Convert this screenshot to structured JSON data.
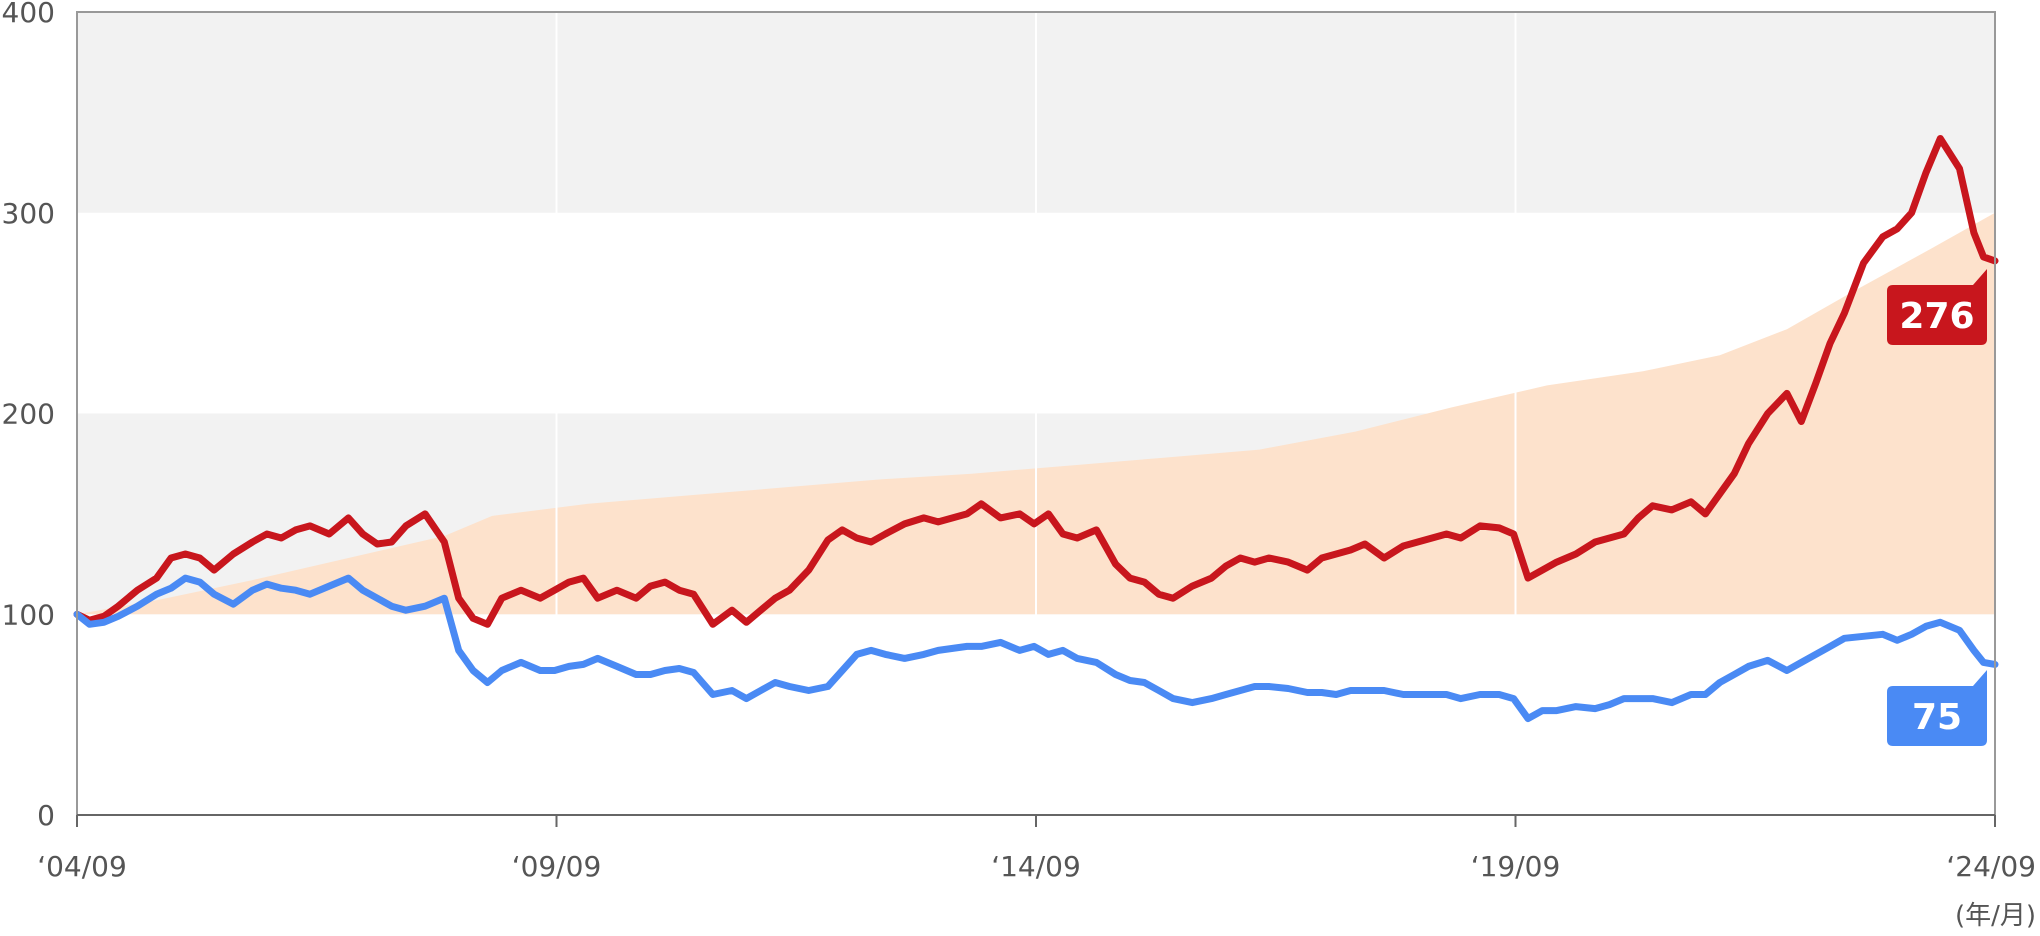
{
  "chart_data": {
    "type": "line",
    "ylim": [
      0,
      400
    ],
    "y_ticks": [
      "0",
      "100",
      "200",
      "300",
      "400"
    ],
    "x_ticks": [
      "‘04/09",
      "‘09/09",
      "‘14/09",
      "‘19/09",
      "‘24/09"
    ],
    "x_unit_label": "(年/月)",
    "grid": true,
    "colors": {
      "series_red": "#c8161d",
      "series_blue": "#4a8af4",
      "area_fill": "#fde2cc",
      "band_gray": "#f2f2f2",
      "axis": "#999999"
    },
    "area": {
      "x": [
        2004.67,
        2005.5,
        2006.5,
        2007.5,
        2008.5,
        2009.0,
        2010.0,
        2011.0,
        2012.0,
        2013.0,
        2014.0,
        2015.0,
        2016.0,
        2017.0,
        2018.0,
        2019.0,
        2020.0,
        2021.0,
        2021.8,
        2022.5,
        2023.2,
        2024.0,
        2024.67
      ],
      "values": [
        100,
        107,
        117,
        128,
        139,
        149,
        155,
        159,
        163,
        167,
        170,
        174,
        178,
        182,
        191,
        203,
        214,
        221,
        229,
        242,
        261,
        282,
        300
      ]
    },
    "series": [
      {
        "label": "276",
        "x": [
          2004.67,
          2004.8,
          2004.95,
          2005.1,
          2005.3,
          2005.5,
          2005.65,
          2005.8,
          2005.95,
          2006.1,
          2006.3,
          2006.5,
          2006.65,
          2006.8,
          2006.95,
          2007.1,
          2007.3,
          2007.5,
          2007.65,
          2007.8,
          2007.95,
          2008.1,
          2008.3,
          2008.5,
          2008.65,
          2008.8,
          2008.95,
          2009.1,
          2009.3,
          2009.5,
          2009.65,
          2009.8,
          2009.95,
          2010.1,
          2010.3,
          2010.5,
          2010.65,
          2010.8,
          2010.95,
          2011.1,
          2011.3,
          2011.5,
          2011.65,
          2011.8,
          2011.95,
          2012.1,
          2012.3,
          2012.5,
          2012.65,
          2012.8,
          2012.95,
          2013.1,
          2013.3,
          2013.5,
          2013.65,
          2013.8,
          2013.95,
          2014.1,
          2014.3,
          2014.5,
          2014.65,
          2014.8,
          2014.95,
          2015.1,
          2015.3,
          2015.5,
          2015.65,
          2015.8,
          2015.95,
          2016.1,
          2016.3,
          2016.5,
          2016.65,
          2016.8,
          2016.95,
          2017.1,
          2017.3,
          2017.5,
          2017.65,
          2017.8,
          2017.95,
          2018.1,
          2018.3,
          2018.5,
          2018.65,
          2018.8,
          2018.95,
          2019.1,
          2019.3,
          2019.5,
          2019.65,
          2019.8,
          2019.95,
          2020.1,
          2020.3,
          2020.5,
          2020.65,
          2020.8,
          2020.95,
          2021.1,
          2021.3,
          2021.5,
          2021.65,
          2021.8,
          2021.95,
          2022.1,
          2022.3,
          2022.5,
          2022.65,
          2022.8,
          2022.95,
          2023.1,
          2023.3,
          2023.5,
          2023.65,
          2023.8,
          2023.95,
          2024.1,
          2024.3,
          2024.45,
          2024.55,
          2024.67
        ],
        "values": [
          100,
          97,
          99,
          104,
          112,
          118,
          128,
          130,
          128,
          122,
          130,
          136,
          140,
          138,
          142,
          144,
          140,
          148,
          140,
          135,
          136,
          144,
          150,
          136,
          108,
          98,
          95,
          108,
          112,
          108,
          112,
          116,
          118,
          108,
          112,
          108,
          114,
          116,
          112,
          110,
          95,
          102,
          96,
          102,
          108,
          112,
          122,
          137,
          142,
          138,
          136,
          140,
          145,
          148,
          146,
          148,
          150,
          155,
          148,
          150,
          145,
          150,
          140,
          138,
          142,
          125,
          118,
          116,
          110,
          108,
          114,
          118,
          124,
          128,
          126,
          128,
          126,
          122,
          128,
          130,
          132,
          135,
          128,
          134,
          136,
          138,
          140,
          138,
          144,
          143,
          140,
          118,
          122,
          126,
          130,
          136,
          138,
          140,
          148,
          154,
          152,
          156,
          150,
          160,
          170,
          185,
          200,
          210,
          196,
          215,
          235,
          250,
          275,
          288,
          292,
          300,
          320,
          337,
          322,
          290,
          278,
          276
        ]
      },
      {
        "label": "75",
        "x": [
          2004.67,
          2004.8,
          2004.95,
          2005.1,
          2005.3,
          2005.5,
          2005.65,
          2005.8,
          2005.95,
          2006.1,
          2006.3,
          2006.5,
          2006.65,
          2006.8,
          2006.95,
          2007.1,
          2007.3,
          2007.5,
          2007.65,
          2007.8,
          2007.95,
          2008.1,
          2008.3,
          2008.5,
          2008.65,
          2008.8,
          2008.95,
          2009.1,
          2009.3,
          2009.5,
          2009.65,
          2009.8,
          2009.95,
          2010.1,
          2010.3,
          2010.5,
          2010.65,
          2010.8,
          2010.95,
          2011.1,
          2011.3,
          2011.5,
          2011.65,
          2011.8,
          2011.95,
          2012.1,
          2012.3,
          2012.5,
          2012.65,
          2012.8,
          2012.95,
          2013.1,
          2013.3,
          2013.5,
          2013.65,
          2013.8,
          2013.95,
          2014.1,
          2014.3,
          2014.5,
          2014.65,
          2014.8,
          2014.95,
          2015.1,
          2015.3,
          2015.5,
          2015.65,
          2015.8,
          2015.95,
          2016.1,
          2016.3,
          2016.5,
          2016.65,
          2016.8,
          2016.95,
          2017.1,
          2017.3,
          2017.5,
          2017.65,
          2017.8,
          2017.95,
          2018.1,
          2018.3,
          2018.5,
          2018.65,
          2018.8,
          2018.95,
          2019.1,
          2019.3,
          2019.5,
          2019.65,
          2019.8,
          2019.95,
          2020.1,
          2020.3,
          2020.5,
          2020.65,
          2020.8,
          2020.95,
          2021.1,
          2021.3,
          2021.5,
          2021.65,
          2021.8,
          2021.95,
          2022.1,
          2022.3,
          2022.5,
          2022.65,
          2022.8,
          2022.95,
          2023.1,
          2023.3,
          2023.5,
          2023.65,
          2023.8,
          2023.95,
          2024.1,
          2024.3,
          2024.45,
          2024.55,
          2024.67
        ],
        "values": [
          100,
          95,
          96,
          99,
          104,
          110,
          113,
          118,
          116,
          110,
          105,
          112,
          115,
          113,
          112,
          110,
          114,
          118,
          112,
          108,
          104,
          102,
          104,
          108,
          82,
          72,
          66,
          72,
          76,
          72,
          72,
          74,
          75,
          78,
          74,
          70,
          70,
          72,
          73,
          71,
          60,
          62,
          58,
          62,
          66,
          64,
          62,
          64,
          72,
          80,
          82,
          80,
          78,
          80,
          82,
          83,
          84,
          84,
          86,
          82,
          84,
          80,
          82,
          78,
          76,
          70,
          67,
          66,
          62,
          58,
          56,
          58,
          60,
          62,
          64,
          64,
          63,
          61,
          61,
          60,
          62,
          62,
          62,
          60,
          60,
          60,
          60,
          58,
          60,
          60,
          58,
          48,
          52,
          52,
          54,
          53,
          55,
          58,
          58,
          58,
          56,
          60,
          60,
          66,
          70,
          74,
          77,
          72,
          76,
          80,
          84,
          88,
          89,
          90,
          87,
          90,
          94,
          96,
          92,
          82,
          76,
          75
        ]
      }
    ]
  }
}
